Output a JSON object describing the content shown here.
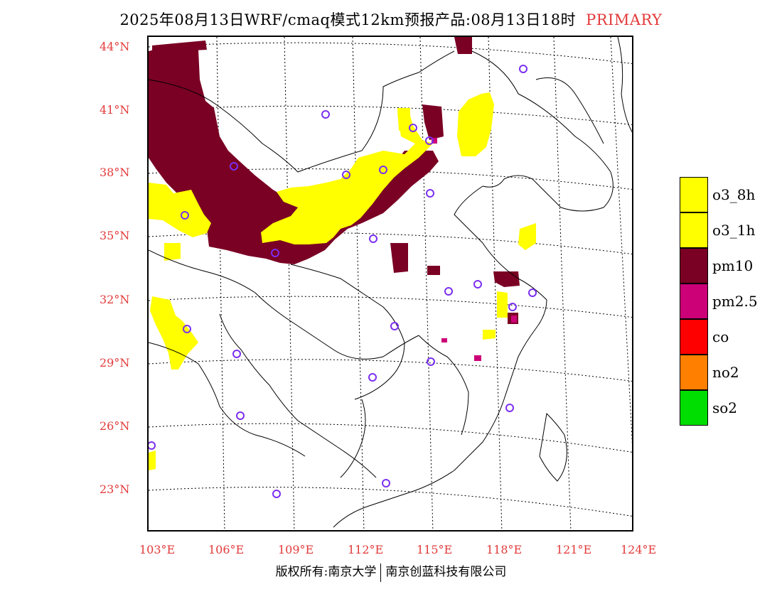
{
  "title": {
    "main": "2025年08月13日WRF/cmaq模式12km预报产品:08月13日18时",
    "tag": "PRIMARY"
  },
  "axes": {
    "lat_labels": [
      "44°N",
      "41°N",
      "38°N",
      "35°N",
      "32°N",
      "29°N",
      "26°N",
      "23°N"
    ],
    "lon_labels": [
      "103°E",
      "106°E",
      "109°E",
      "112°E",
      "115°E",
      "118°E",
      "121°E",
      "124°E"
    ]
  },
  "legend": [
    {
      "label": "o3_8h",
      "color": "#ffff00"
    },
    {
      "label": "o3_1h",
      "color": "#ffff00"
    },
    {
      "label": "pm10",
      "color": "#7a0024"
    },
    {
      "label": "pm2.5",
      "color": "#cc0077"
    },
    {
      "label": "co",
      "color": "#ff0000"
    },
    {
      "label": "no2",
      "color": "#ff7f00"
    },
    {
      "label": "so2",
      "color": "#00dd00"
    }
  ],
  "footer": {
    "left": "版权所有:南京大学",
    "right": "南京创蓝科技有限公司"
  },
  "colors": {
    "title_accent": "#e23a3a",
    "station_marker": "#7b2ff0"
  }
}
